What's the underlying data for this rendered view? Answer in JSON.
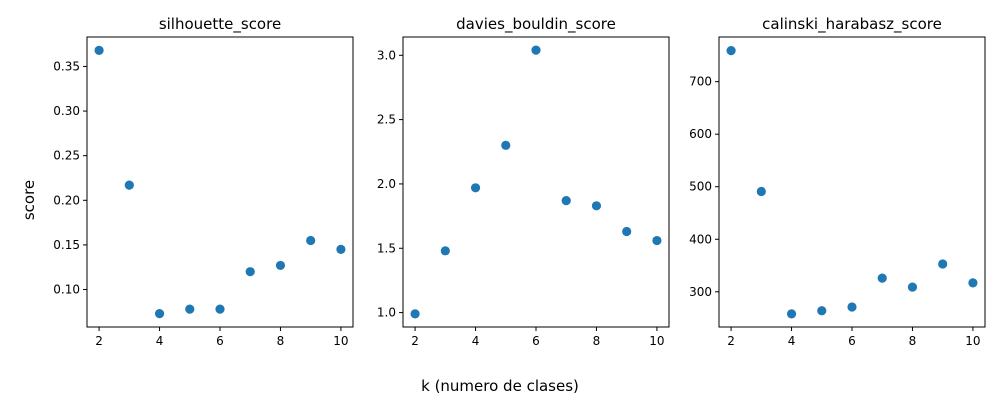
{
  "figure": {
    "ylabel": "score",
    "xlabel": "k (numero de clases)"
  },
  "chart_data": [
    {
      "type": "scatter",
      "title": "silhouette_score",
      "xlabel": "",
      "ylabel": "score",
      "x": [
        2,
        3,
        4,
        5,
        6,
        7,
        8,
        9,
        10
      ],
      "y": [
        0.368,
        0.217,
        0.073,
        0.078,
        0.078,
        0.12,
        0.127,
        0.155,
        0.145
      ],
      "xlim": [
        1.6,
        10.4
      ],
      "ylim": [
        0.058,
        0.383
      ],
      "xticks": [
        2,
        4,
        6,
        8,
        10
      ],
      "xtick_labels": [
        "2",
        "4",
        "6",
        "8",
        "10"
      ],
      "yticks": [
        0.1,
        0.15,
        0.2,
        0.25,
        0.3,
        0.35
      ],
      "ytick_labels": [
        "0.10",
        "0.15",
        "0.20",
        "0.25",
        "0.30",
        "0.35"
      ],
      "color": "#1f77b4",
      "grid": false
    },
    {
      "type": "scatter",
      "title": "davies_bouldin_score",
      "xlabel": "",
      "ylabel": "",
      "x": [
        2,
        3,
        4,
        5,
        6,
        7,
        8,
        9,
        10
      ],
      "y": [
        0.99,
        1.48,
        1.97,
        2.3,
        3.04,
        1.87,
        1.83,
        1.63,
        1.56
      ],
      "xlim": [
        1.6,
        10.4
      ],
      "ylim": [
        0.888,
        3.142
      ],
      "xticks": [
        2,
        4,
        6,
        8,
        10
      ],
      "xtick_labels": [
        "2",
        "4",
        "6",
        "8",
        "10"
      ],
      "yticks": [
        1.0,
        1.5,
        2.0,
        2.5,
        3.0
      ],
      "ytick_labels": [
        "1.0",
        "1.5",
        "2.0",
        "2.5",
        "3.0"
      ],
      "color": "#1f77b4",
      "grid": false
    },
    {
      "type": "scatter",
      "title": "calinski_harabasz_score",
      "xlabel": "",
      "ylabel": "",
      "x": [
        2,
        3,
        4,
        5,
        6,
        7,
        8,
        9,
        10
      ],
      "y": [
        759,
        491,
        258,
        264,
        271,
        326,
        309,
        353,
        317
      ],
      "xlim": [
        1.6,
        10.4
      ],
      "ylim": [
        233,
        785
      ],
      "xticks": [
        2,
        4,
        6,
        8,
        10
      ],
      "xtick_labels": [
        "2",
        "4",
        "6",
        "8",
        "10"
      ],
      "yticks": [
        300,
        400,
        500,
        600,
        700
      ],
      "ytick_labels": [
        "300",
        "400",
        "500",
        "600",
        "700"
      ],
      "color": "#1f77b4",
      "grid": false
    }
  ]
}
